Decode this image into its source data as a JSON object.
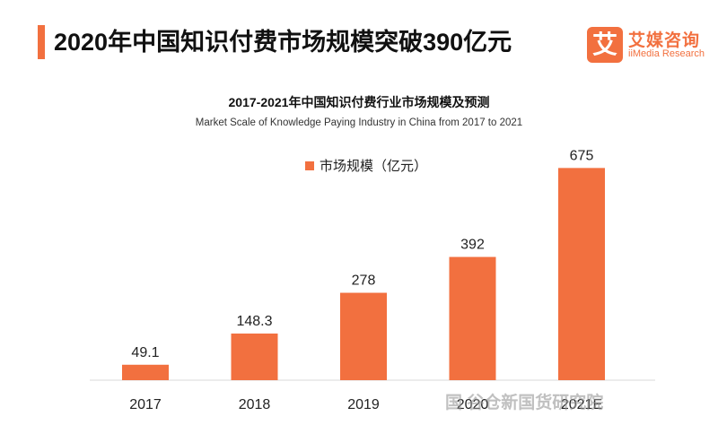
{
  "header": {
    "title": "2020年中国知识付费市场规模突破390亿元"
  },
  "logo": {
    "mark": "艾",
    "name": "艾媒咨询",
    "subtitle": "iiMedia Research"
  },
  "watermark": "国 谷仓新国货研究院",
  "colors": {
    "accent": "#f2703f",
    "bar": "#f2703f",
    "axis": "#d9d9d9"
  },
  "chart_data": {
    "type": "bar",
    "title": "2017-2021年中国知识付费行业市场规模及预测",
    "subtitle": "Market Scale of Knowledge Paying Industry in China from 2017 to 2021",
    "categories": [
      "2017",
      "2018",
      "2019",
      "2020",
      "2021E"
    ],
    "series": [
      {
        "name": "市场规模（亿元）",
        "values": [
          49.1,
          148.3,
          278,
          392,
          675
        ],
        "labels": [
          "49.1",
          "148.3",
          "278",
          "392",
          "675"
        ]
      }
    ],
    "ylim": [
      0,
      850
    ],
    "legend": "top-center",
    "grid": false
  }
}
